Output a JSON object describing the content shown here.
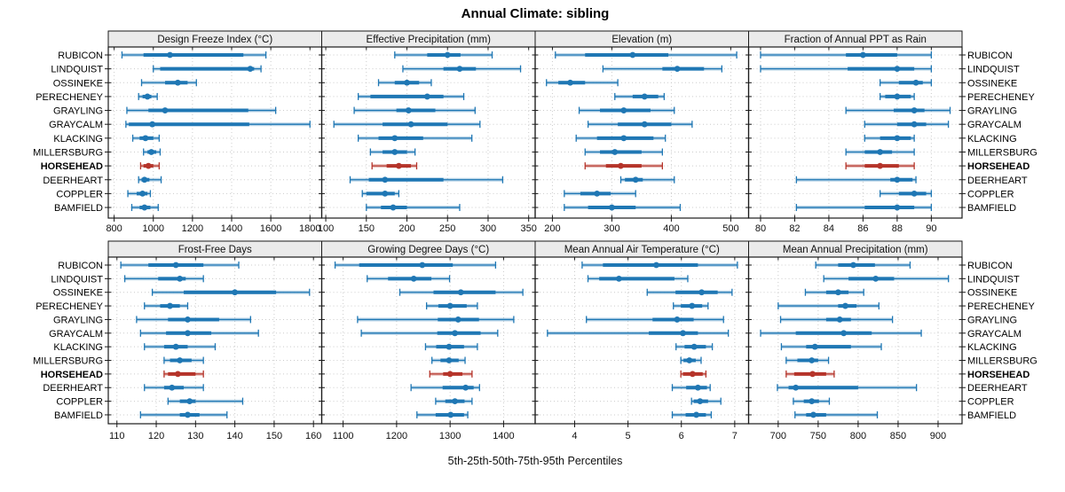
{
  "title": "Annual Climate: sibling",
  "caption": "5th-25th-50th-75th-95th Percentiles",
  "percentile_labels": [
    "5th",
    "25th",
    "50th",
    "75th",
    "95th"
  ],
  "sites": [
    "RUBICON",
    "LINDQUIST",
    "OSSINEKE",
    "PERECHENEY",
    "GRAYLING",
    "GRAYCALM",
    "KLACKING",
    "MILLERSBURG",
    "HORSEHEAD",
    "DEERHEART",
    "COPPLER",
    "BAMFIELD"
  ],
  "highlight_site": "HORSEHEAD",
  "colors": {
    "series_blue": "#1f77b4",
    "series_blue_light": "rgba(31,119,180,0.30)",
    "highlight_red": "#b5342a",
    "highlight_red_light": "rgba(181,52,42,0.30)",
    "grid": "#cccccc",
    "strip_bg": "#ebebeb",
    "panel_border": "#1a1a1a"
  },
  "chart_data": [
    {
      "type": "interval-dotplot",
      "slug": "design-freeze-index",
      "title": "Design Freeze Index (°C)",
      "row": 0,
      "col": 0,
      "xlim": [
        770,
        1860
      ],
      "ticks": [
        800,
        1000,
        1200,
        1400,
        1600,
        1800
      ],
      "values": [
        [
          840,
          950,
          1085,
          1460,
          1575
        ],
        [
          1000,
          1035,
          1495,
          1515,
          1550
        ],
        [
          940,
          1060,
          1125,
          1175,
          1220
        ],
        [
          925,
          945,
          970,
          990,
          1020
        ],
        [
          865,
          975,
          1060,
          1485,
          1625
        ],
        [
          860,
          875,
          995,
          1490,
          1800
        ],
        [
          895,
          930,
          960,
          1000,
          1030
        ],
        [
          950,
          970,
          990,
          1015,
          1035
        ],
        [
          935,
          950,
          975,
          1000,
          1030
        ],
        [
          925,
          940,
          955,
          980,
          1040
        ],
        [
          870,
          915,
          945,
          970,
          985
        ],
        [
          890,
          930,
          955,
          985,
          1025
        ]
      ]
    },
    {
      "type": "interval-dotplot",
      "slug": "effective-precipitation",
      "title": "Effective Precipitation (mm)",
      "row": 0,
      "col": 1,
      "xlim": [
        95,
        358
      ],
      "ticks": [
        100,
        150,
        200,
        250,
        300,
        350
      ],
      "values": [
        [
          185,
          225,
          250,
          266,
          305
        ],
        [
          195,
          245,
          265,
          285,
          340
        ],
        [
          165,
          185,
          200,
          215,
          230
        ],
        [
          140,
          155,
          225,
          245,
          270
        ],
        [
          135,
          187,
          202,
          235,
          284
        ],
        [
          110,
          170,
          205,
          250,
          290
        ],
        [
          140,
          165,
          185,
          220,
          280
        ],
        [
          155,
          170,
          185,
          200,
          210
        ],
        [
          157,
          175,
          190,
          205,
          212
        ],
        [
          130,
          153,
          173,
          245,
          318
        ],
        [
          145,
          150,
          173,
          185,
          190
        ],
        [
          150,
          168,
          183,
          200,
          265
        ]
      ]
    },
    {
      "type": "interval-dotplot",
      "slug": "elevation",
      "title": "Elevation (m)",
      "row": 0,
      "col": 2,
      "xlim": [
        171,
        530
      ],
      "ticks": [
        200,
        300,
        400,
        500
      ],
      "values": [
        [
          205,
          255,
          335,
          395,
          510
        ],
        [
          285,
          385,
          410,
          455,
          485
        ],
        [
          190,
          210,
          230,
          255,
          310
        ],
        [
          305,
          335,
          355,
          378,
          388
        ],
        [
          245,
          280,
          320,
          365,
          405
        ],
        [
          260,
          310,
          355,
          400,
          435
        ],
        [
          240,
          275,
          320,
          370,
          390
        ],
        [
          255,
          280,
          305,
          350,
          385
        ],
        [
          255,
          290,
          315,
          350,
          385
        ],
        [
          315,
          322,
          340,
          352,
          405
        ],
        [
          220,
          247,
          275,
          298,
          340
        ],
        [
          220,
          260,
          300,
          340,
          415
        ]
      ]
    },
    {
      "type": "interval-dotplot",
      "slug": "fraction-annual-ppt-rain",
      "title": "Fraction of Annual PPT as Rain",
      "row": 0,
      "col": 3,
      "xlim": [
        79.3,
        91.8
      ],
      "ticks": [
        80,
        82,
        84,
        86,
        88,
        90
      ],
      "values": [
        [
          80,
          85,
          86,
          88,
          90
        ],
        [
          80,
          85.1,
          88,
          89,
          90
        ],
        [
          87,
          88.1,
          89.1,
          89.5,
          90
        ],
        [
          87,
          87.3,
          88,
          88.8,
          89
        ],
        [
          85,
          87.8,
          89,
          89.6,
          91.1
        ],
        [
          86.1,
          88,
          89,
          89.7,
          91
        ],
        [
          86.1,
          87,
          88,
          88.8,
          89
        ],
        [
          85,
          86.1,
          87,
          87.7,
          89
        ],
        [
          85,
          86.1,
          87,
          88.1,
          89
        ],
        [
          82.1,
          87.6,
          88,
          88.9,
          89.1
        ],
        [
          87,
          88.1,
          89,
          89.7,
          90
        ],
        [
          82.1,
          86.1,
          88,
          89,
          90
        ]
      ]
    },
    {
      "type": "interval-dotplot",
      "slug": "frost-free-days",
      "title": "Frost-Free Days",
      "row": 1,
      "col": 0,
      "xlim": [
        107.8,
        162.1
      ],
      "ticks": [
        110,
        120,
        130,
        140,
        150,
        160
      ],
      "values": [
        [
          111,
          118,
          125,
          132,
          141
        ],
        [
          112,
          120.5,
          126,
          127.5,
          132
        ],
        [
          119,
          127,
          140,
          150.5,
          159
        ],
        [
          117,
          121,
          123.5,
          126,
          128
        ],
        [
          115,
          123,
          128,
          136,
          144
        ],
        [
          116,
          122.5,
          128,
          134,
          146
        ],
        [
          117,
          122,
          125,
          128,
          135
        ],
        [
          122,
          123.5,
          126,
          129,
          132
        ],
        [
          122,
          123,
          125.5,
          130,
          132
        ],
        [
          117,
          122,
          124,
          127,
          132
        ],
        [
          123,
          126,
          128.5,
          130,
          142
        ],
        [
          116,
          126,
          128,
          131,
          138
        ]
      ]
    },
    {
      "type": "interval-dotplot",
      "slug": "growing-degree-days",
      "title": "Growing Degree Days (°C)",
      "row": 1,
      "col": 1,
      "xlim": [
        1060,
        1459
      ],
      "ticks": [
        1100,
        1200,
        1300,
        1400
      ],
      "values": [
        [
          1085,
          1130,
          1248,
          1305,
          1385
        ],
        [
          1145,
          1184,
          1232,
          1265,
          1299
        ],
        [
          1206,
          1269,
          1320,
          1385,
          1436
        ],
        [
          1256,
          1278,
          1300,
          1331,
          1351
        ],
        [
          1127,
          1277,
          1315,
          1354,
          1419
        ],
        [
          1134,
          1276,
          1309,
          1357,
          1389
        ],
        [
          1254,
          1274,
          1298,
          1326,
          1351
        ],
        [
          1266,
          1282,
          1298,
          1316,
          1328
        ],
        [
          1262,
          1287,
          1300,
          1323,
          1341
        ],
        [
          1227,
          1286,
          1329,
          1344,
          1355
        ],
        [
          1273,
          1291,
          1309,
          1327,
          1341
        ],
        [
          1238,
          1273,
          1301,
          1326,
          1333
        ]
      ]
    },
    {
      "type": "interval-dotplot",
      "slug": "mean-annual-air-temperature",
      "title": "Mean Annual Air Temperature (°C)",
      "row": 1,
      "col": 2,
      "xlim": [
        3.26,
        7.26
      ],
      "ticks": [
        4,
        5,
        6,
        7
      ],
      "values": [
        [
          4.14,
          4.53,
          5.53,
          6.31,
          7.05
        ],
        [
          4.25,
          4.46,
          4.83,
          5.87,
          6.12
        ],
        [
          5.36,
          5.89,
          6.38,
          6.68,
          6.95
        ],
        [
          5.85,
          5.99,
          6.2,
          6.39,
          6.5
        ],
        [
          4.22,
          5.46,
          5.92,
          6.23,
          6.79
        ],
        [
          3.49,
          5.39,
          6.03,
          6.31,
          6.88
        ],
        [
          5.9,
          6.06,
          6.24,
          6.46,
          6.58
        ],
        [
          5.99,
          6.04,
          6.15,
          6.27,
          6.37
        ],
        [
          5.99,
          6.03,
          6.21,
          6.4,
          6.46
        ],
        [
          5.83,
          6.09,
          6.31,
          6.48,
          6.54
        ],
        [
          6.19,
          6.23,
          6.35,
          6.5,
          6.74
        ],
        [
          5.83,
          6.08,
          6.28,
          6.46,
          6.56
        ]
      ]
    },
    {
      "type": "interval-dotplot",
      "slug": "mean-annual-precipitation",
      "title": "Mean Annual Precipitation (mm)",
      "row": 1,
      "col": 3,
      "xlim": [
        663,
        930
      ],
      "ticks": [
        700,
        750,
        800,
        850,
        900
      ],
      "values": [
        [
          747,
          775,
          794,
          821,
          865
        ],
        [
          757,
          788,
          822,
          845,
          913
        ],
        [
          734,
          760,
          775,
          788,
          807
        ],
        [
          700,
          775,
          784,
          798,
          826
        ],
        [
          703,
          760,
          777,
          791,
          843
        ],
        [
          678,
          722,
          782,
          817,
          879
        ],
        [
          704,
          735,
          746,
          791,
          829
        ],
        [
          710,
          724,
          742,
          750,
          763
        ],
        [
          710,
          720,
          743,
          760,
          770
        ],
        [
          699,
          713,
          722,
          800,
          873
        ],
        [
          719,
          732,
          742,
          751,
          764
        ],
        [
          721,
          735,
          744,
          760,
          824
        ]
      ]
    }
  ]
}
